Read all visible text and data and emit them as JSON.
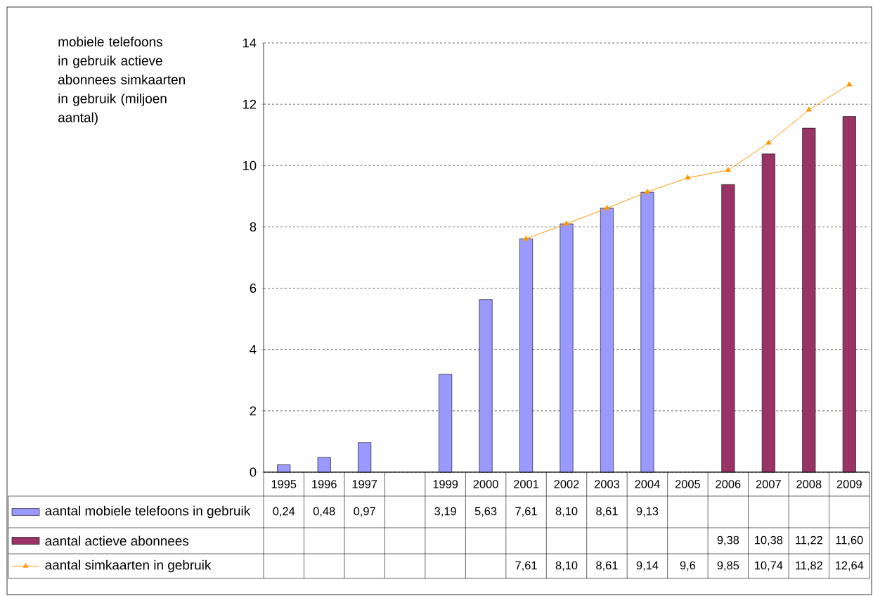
{
  "chart_data": {
    "type": "bar",
    "ylabel": "mobiele telefoons in gebruik actieve abonnees simkaarten in gebruik (miljoen aantal)",
    "categories": [
      "1995",
      "1996",
      "1997",
      null,
      "1999",
      "2000",
      "2001",
      "2002",
      "2003",
      "2004",
      "2005",
      "2006",
      "2007",
      "2008",
      "2009"
    ],
    "series": [
      {
        "name": "aantal mobiele telefoons in gebruik",
        "color": "#9999ff",
        "values": [
          0.24,
          0.48,
          0.97,
          null,
          3.19,
          5.63,
          7.61,
          8.1,
          8.61,
          9.13,
          null,
          null,
          null,
          null,
          null
        ],
        "value_labels": [
          "0,24",
          "0,48",
          "0,97",
          null,
          "3,19",
          "5,63",
          "7,61",
          "8,10",
          "8,61",
          "9,13",
          null,
          null,
          null,
          null,
          null
        ]
      },
      {
        "name": "aantal actieve abonnees",
        "color": "#993366",
        "values": [
          null,
          null,
          null,
          null,
          null,
          null,
          null,
          null,
          null,
          null,
          null,
          9.38,
          10.38,
          11.22,
          11.6
        ],
        "value_labels": [
          null,
          null,
          null,
          null,
          null,
          null,
          null,
          null,
          null,
          null,
          null,
          "9,38",
          "10,38",
          "11,22",
          "11,60"
        ]
      },
      {
        "name": "aantal simkaarten in gebruik",
        "type": "line",
        "color": "#ff9900",
        "marker": "triangle",
        "values": [
          null,
          null,
          null,
          null,
          null,
          null,
          7.61,
          8.1,
          8.61,
          9.14,
          9.6,
          9.85,
          10.74,
          11.82,
          12.64
        ],
        "value_labels": [
          null,
          null,
          null,
          null,
          null,
          null,
          "7,61",
          "8,10",
          "8,61",
          "9,14",
          "9,6",
          "9,85",
          "10,74",
          "11,82",
          "12,64"
        ]
      }
    ],
    "ylim": [
      0,
      14
    ],
    "yticks": [
      0,
      2,
      4,
      6,
      8,
      10,
      12,
      14
    ],
    "grid": "y",
    "legend": "bottom"
  }
}
